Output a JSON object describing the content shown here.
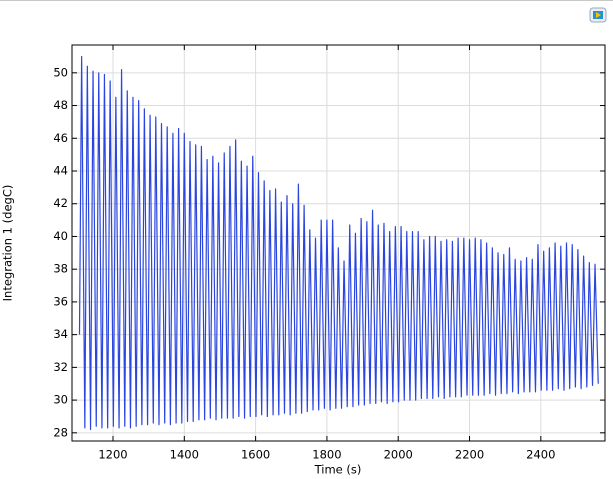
{
  "chart_data": {
    "type": "line",
    "xlabel": "Time (s)",
    "ylabel": "Integration 1 (degC)",
    "color": "#2a45e0",
    "grid": true,
    "xlim": [
      1085,
      2580
    ],
    "ylim": [
      27.5,
      51.7
    ],
    "xticks": [
      1200,
      1400,
      1600,
      1800,
      2000,
      2200,
      2400
    ],
    "yticks": [
      28,
      30,
      32,
      34,
      36,
      38,
      40,
      42,
      44,
      46,
      48,
      50
    ],
    "x": [
      1106,
      1112,
      1121,
      1128,
      1137,
      1144,
      1153,
      1160,
      1169,
      1176,
      1185,
      1192,
      1201,
      1208,
      1217,
      1224,
      1233,
      1240,
      1249,
      1256,
      1265,
      1272,
      1281,
      1288,
      1297,
      1304,
      1313,
      1320,
      1329,
      1336,
      1345,
      1352,
      1361,
      1368,
      1377,
      1384,
      1393,
      1400,
      1409,
      1416,
      1425,
      1432,
      1441,
      1448,
      1457,
      1464,
      1473,
      1480,
      1489,
      1496,
      1505,
      1512,
      1521,
      1528,
      1537,
      1544,
      1553,
      1560,
      1569,
      1576,
      1585,
      1592,
      1601,
      1608,
      1617,
      1624,
      1633,
      1640,
      1649,
      1656,
      1665,
      1672,
      1681,
      1688,
      1697,
      1704,
      1713,
      1720,
      1729,
      1736,
      1745,
      1752,
      1761,
      1768,
      1777,
      1784,
      1793,
      1800,
      1809,
      1816,
      1825,
      1832,
      1841,
      1848,
      1857,
      1864,
      1873,
      1880,
      1889,
      1896,
      1905,
      1912,
      1921,
      1928,
      1937,
      1944,
      1953,
      1960,
      1969,
      1976,
      1985,
      1992,
      2001,
      2008,
      2017,
      2024,
      2033,
      2040,
      2049,
      2056,
      2065,
      2072,
      2081,
      2088,
      2097,
      2104,
      2113,
      2120,
      2129,
      2136,
      2145,
      2152,
      2161,
      2168,
      2177,
      2184,
      2193,
      2200,
      2209,
      2216,
      2225,
      2232,
      2241,
      2248,
      2257,
      2264,
      2273,
      2280,
      2289,
      2296,
      2305,
      2312,
      2321,
      2328,
      2337,
      2344,
      2353,
      2360,
      2369,
      2376,
      2385,
      2392,
      2401,
      2408,
      2417,
      2424,
      2433,
      2440,
      2449,
      2456,
      2465,
      2472,
      2481,
      2488,
      2497,
      2504,
      2513,
      2520,
      2529,
      2536,
      2545,
      2552,
      2561
    ],
    "values": [
      34,
      51,
      28.3,
      50.4,
      28.2,
      50.1,
      28.4,
      50,
      28.3,
      49.9,
      28.3,
      49.5,
      28.4,
      48.5,
      28.3,
      50.2,
      28.4,
      48.9,
      28.3,
      48.5,
      28.4,
      48.3,
      28.5,
      47.8,
      28.5,
      47.4,
      28.6,
      47.3,
      28.5,
      46.9,
      28.6,
      46.7,
      28.5,
      46.3,
      28.6,
      46.6,
      28.6,
      46.3,
      28.7,
      45.8,
      28.7,
      45.6,
      28.8,
      45.5,
      28.8,
      44.7,
      28.9,
      44.9,
      28.8,
      44.5,
      28.9,
      45.1,
      28.9,
      45.5,
      28.9,
      45.9,
      29.0,
      44.6,
      28.9,
      44.3,
      29.0,
      44.9,
      29.0,
      43.9,
      29.1,
      43.4,
      29.0,
      42.8,
      29.1,
      42.9,
      29.1,
      42.1,
      29.2,
      42.5,
      29.1,
      42.0,
      29.2,
      43.2,
      29.2,
      41.9,
      29.3,
      40.4,
      29.4,
      39.9,
      29.4,
      41.0,
      29.5,
      41.0,
      29.4,
      41.0,
      29.5,
      39.3,
      29.5,
      38.5,
      29.6,
      40.7,
      29.6,
      40.2,
      29.7,
      41.1,
      29.7,
      40.9,
      29.8,
      41.6,
      29.8,
      40.7,
      29.9,
      40.8,
      29.8,
      40.3,
      29.9,
      40.6,
      29.9,
      40.6,
      30.0,
      40.3,
      30.0,
      40.3,
      30.0,
      40.3,
      30.1,
      39.8,
      30.1,
      40.0,
      30.1,
      40.0,
      30.2,
      39.7,
      30.1,
      39.8,
      30.2,
      39.7,
      30.2,
      39.9,
      30.2,
      39.9,
      30.3,
      39.8,
      30.3,
      39.9,
      30.3,
      39.8,
      30.3,
      39.6,
      30.4,
      39.3,
      30.3,
      39.0,
      30.4,
      38.9,
      30.4,
      39.3,
      30.5,
      38.6,
      30.4,
      38.5,
      30.5,
      38.7,
      30.5,
      38.6,
      30.5,
      39.5,
      30.6,
      39.1,
      30.6,
      39.3,
      30.6,
      39.6,
      30.7,
      39.4,
      30.6,
      39.6,
      30.7,
      39.5,
      30.8,
      39.2,
      30.7,
      38.8,
      30.8,
      38.4,
      30.9,
      38.3,
      31.0
    ]
  }
}
